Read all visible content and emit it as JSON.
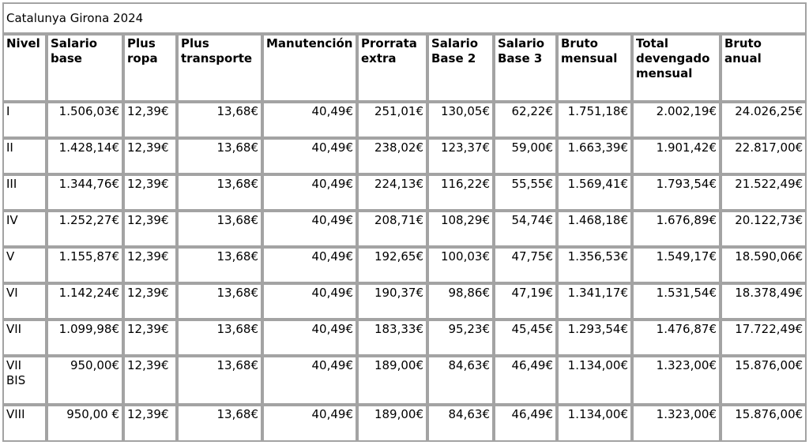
{
  "page": {
    "background_color": "#ffffff",
    "border_color": "#a3a3a3",
    "text_color": "#000000"
  },
  "chart_data": {
    "type": "table",
    "title": "Catalunya Girona 2024",
    "columns": [
      {
        "label": "Nivel",
        "label_lines": [
          "Nivel"
        ],
        "align": "left"
      },
      {
        "label": "Salario base",
        "label_lines": [
          "Salario",
          "base"
        ],
        "align": "right"
      },
      {
        "label": "Plus ropa",
        "label_lines": [
          "Plus",
          "ropa"
        ],
        "align": "left"
      },
      {
        "label": "Plus transporte",
        "label_lines": [
          "Plus",
          "transporte"
        ],
        "align": "right"
      },
      {
        "label": "Manutención",
        "label_lines": [
          "Manutención"
        ],
        "align": "right"
      },
      {
        "label": "Prorrata extra",
        "label_lines": [
          "Prorrata",
          "extra"
        ],
        "align": "right"
      },
      {
        "label": "Salario Base 2",
        "label_lines": [
          "Salario",
          "Base 2"
        ],
        "align": "right"
      },
      {
        "label": "Salario Base 3",
        "label_lines": [
          "Salario",
          "Base 3"
        ],
        "align": "right"
      },
      {
        "label": "Bruto mensual",
        "label_lines": [
          "Bruto",
          "mensual"
        ],
        "align": "right"
      },
      {
        "label": "Total devengado mensual",
        "label_lines": [
          "Total",
          "devengado",
          "mensual"
        ],
        "align": "right"
      },
      {
        "label": "Bruto anual",
        "label_lines": [
          "Bruto",
          "anual"
        ],
        "align": "right"
      }
    ],
    "rows": [
      {
        "level": "I",
        "level_lines": [
          "I"
        ],
        "values": [
          "1.506,03€",
          "12,39€",
          "13,68€",
          "40,49€",
          "251,01€",
          "130,05€",
          "62,22€",
          "1.751,18€",
          "2.002,19€",
          "24.026,25€"
        ]
      },
      {
        "level": "II",
        "level_lines": [
          "II"
        ],
        "values": [
          "1.428,14€",
          "12,39€",
          "13,68€",
          "40,49€",
          "238,02€",
          "123,37€",
          "59,00€",
          "1.663,39€",
          "1.901,42€",
          "22.817,00€"
        ]
      },
      {
        "level": "III",
        "level_lines": [
          "III"
        ],
        "values": [
          "1.344,76€",
          "12,39€",
          "13,68€",
          "40,49€",
          "224,13€",
          "116,22€",
          "55,55€",
          "1.569,41€",
          "1.793,54€",
          "21.522,49€"
        ]
      },
      {
        "level": "IV",
        "level_lines": [
          "IV"
        ],
        "values": [
          "1.252,27€",
          "12,39€",
          "13,68€",
          "40,49€",
          "208,71€",
          "108,29€",
          "54,74€",
          "1.468,18€",
          "1.676,89€",
          "20.122,73€"
        ]
      },
      {
        "level": "V",
        "level_lines": [
          "V"
        ],
        "values": [
          "1.155,87€",
          "12,39€",
          "13,68€",
          "40,49€",
          "192,65€",
          "100,03€",
          "47,75€",
          "1.356,53€",
          "1.549,17€",
          "18.590,06€"
        ]
      },
      {
        "level": "VI",
        "level_lines": [
          "VI"
        ],
        "values": [
          "1.142,24€",
          "12,39€",
          "13,68€",
          "40,49€",
          "190,37€",
          "98,86€",
          "47,19€",
          "1.341,17€",
          "1.531,54€",
          "18.378,49€"
        ]
      },
      {
        "level": "VII",
        "level_lines": [
          "VII"
        ],
        "values": [
          "1.099,98€",
          "12,39€",
          "13,68€",
          "40,49€",
          "183,33€",
          "95,23€",
          "45,45€",
          "1.293,54€",
          "1.476,87€",
          "17.722,49€"
        ]
      },
      {
        "level": "VII BIS",
        "level_lines": [
          "VII",
          "BIS"
        ],
        "values": [
          "950,00€",
          "12,39€",
          "13,68€",
          "40,49€",
          "189,00€",
          "84,63€",
          "46,49€",
          "1.134,00€",
          "1.323,00€",
          "15.876,00€"
        ]
      },
      {
        "level": "VIII",
        "level_lines": [
          "VIII"
        ],
        "values": [
          "950,00 €",
          "12,39€",
          "13,68€",
          "40,49€",
          "189,00€",
          "84,63€",
          "46,49€",
          "1.134,00€",
          "1.323,00€",
          "15.876,00€"
        ]
      }
    ]
  }
}
